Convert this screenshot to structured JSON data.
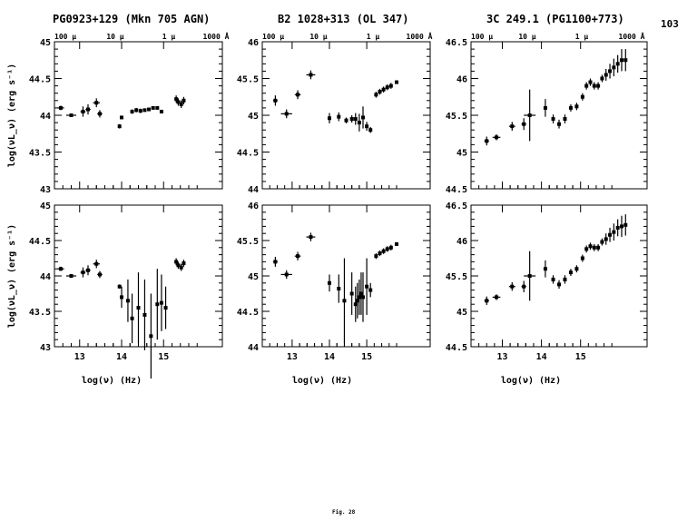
{
  "page_number": "103",
  "figure_label": "Fig. 28",
  "colors": {
    "ink": "#000000",
    "paper": "#ffffff"
  },
  "chart_data": [
    {
      "type": "scatter",
      "title": "PG0923+129 (Mkn 705 AGN)",
      "panel": "top-left",
      "xlim": [
        12.4,
        16.4
      ],
      "ylim": [
        43,
        45
      ],
      "xticks": [
        "13",
        "14",
        "15"
      ],
      "yticks": [
        "43",
        "43.5",
        "44",
        "44.5",
        "45"
      ],
      "top_labels": [
        "100 μ",
        "10 μ",
        "1 μ",
        "1000 Å"
      ],
      "xlabel": "",
      "ylabel": "log(νL_ν) (erg s⁻¹)",
      "points": [
        [
          12.55,
          44.1,
          0.08,
          0.03
        ],
        [
          12.8,
          44.0,
          0.12,
          0.01
        ],
        [
          13.08,
          44.05,
          0.06,
          0.07
        ],
        [
          13.2,
          44.08,
          0.06,
          0.07
        ],
        [
          13.4,
          44.17,
          0.08,
          0.06
        ],
        [
          13.48,
          44.02,
          0.06,
          0.05
        ],
        [
          13.95,
          43.85,
          0.02,
          0.03
        ],
        [
          14.0,
          43.97,
          0.02,
          0.02
        ],
        [
          14.25,
          44.05,
          0.03,
          0.03
        ],
        [
          14.35,
          44.07,
          0.03,
          0.03
        ],
        [
          14.45,
          44.06,
          0.03,
          0.03
        ],
        [
          14.55,
          44.07,
          0.02,
          0.02
        ],
        [
          14.65,
          44.08,
          0.02,
          0.02
        ],
        [
          14.75,
          44.1,
          0.02,
          0.02
        ],
        [
          14.85,
          44.1,
          0.02,
          0.02
        ],
        [
          14.95,
          44.05,
          0.04,
          0.01
        ],
        [
          15.3,
          44.22,
          0.03,
          0.05
        ],
        [
          15.35,
          44.18,
          0.03,
          0.05
        ],
        [
          15.42,
          44.15,
          0.03,
          0.05
        ],
        [
          15.48,
          44.2,
          0.02,
          0.05
        ]
      ]
    },
    {
      "type": "scatter",
      "title": "B2 1028+313 (OL 347)",
      "panel": "top-middle",
      "xlim": [
        12.2,
        16.7
      ],
      "ylim": [
        44,
        46
      ],
      "xticks": [
        "13",
        "14",
        "15"
      ],
      "yticks": [
        "44",
        "44.5",
        "45",
        "45.5",
        "46"
      ],
      "top_labels": [
        "100 μ",
        "10 μ",
        "1 μ",
        "1000 Å"
      ],
      "xlabel": "",
      "ylabel": "",
      "points": [
        [
          12.55,
          45.2,
          0.06,
          0.07
        ],
        [
          12.85,
          45.02,
          0.15,
          0.06
        ],
        [
          13.15,
          45.28,
          0.08,
          0.06
        ],
        [
          13.5,
          45.55,
          0.12,
          0.06
        ],
        [
          14.0,
          44.96,
          0.03,
          0.07
        ],
        [
          14.25,
          44.98,
          0.03,
          0.06
        ],
        [
          14.45,
          44.93,
          0.03,
          0.04
        ],
        [
          14.6,
          44.95,
          0.03,
          0.05
        ],
        [
          14.7,
          44.95,
          0.02,
          0.08
        ],
        [
          14.8,
          44.9,
          0.02,
          0.12
        ],
        [
          14.9,
          44.97,
          0.02,
          0.15
        ],
        [
          15.0,
          44.85,
          0.02,
          0.06
        ],
        [
          15.1,
          44.8,
          0.02,
          0.04
        ],
        [
          15.25,
          45.28,
          0.02,
          0.04
        ],
        [
          15.35,
          45.32,
          0.02,
          0.04
        ],
        [
          15.45,
          45.35,
          0.02,
          0.04
        ],
        [
          15.55,
          45.38,
          0.02,
          0.04
        ],
        [
          15.65,
          45.4,
          0.02,
          0.04
        ],
        [
          15.8,
          45.45,
          0.02,
          0.02
        ]
      ]
    },
    {
      "type": "scatter",
      "title": "3C 249.1 (PG1100+773)",
      "panel": "top-right",
      "xlim": [
        12.2,
        16.7
      ],
      "ylim": [
        44.5,
        46.5
      ],
      "xticks": [
        "13",
        "14",
        "15"
      ],
      "yticks": [
        "44.5",
        "45",
        "45.5",
        "46",
        "46.5"
      ],
      "top_labels": [
        "100 μ",
        "10 μ",
        "1 μ",
        "1000 Å"
      ],
      "xlabel": "",
      "ylabel": "",
      "points": [
        [
          12.6,
          45.15,
          0.06,
          0.06
        ],
        [
          12.85,
          45.2,
          0.1,
          0.04
        ],
        [
          13.25,
          45.35,
          0.08,
          0.06
        ],
        [
          13.55,
          45.38,
          0.06,
          0.08
        ],
        [
          13.7,
          45.5,
          0.15,
          0.35
        ],
        [
          14.1,
          45.6,
          0.03,
          0.12
        ],
        [
          14.3,
          45.45,
          0.03,
          0.06
        ],
        [
          14.45,
          45.38,
          0.03,
          0.06
        ],
        [
          14.6,
          45.45,
          0.03,
          0.06
        ],
        [
          14.75,
          45.6,
          0.03,
          0.05
        ],
        [
          14.9,
          45.62,
          0.03,
          0.05
        ],
        [
          15.05,
          45.75,
          0.02,
          0.05
        ],
        [
          15.15,
          45.9,
          0.02,
          0.05
        ],
        [
          15.25,
          45.95,
          0.02,
          0.05
        ],
        [
          15.35,
          45.9,
          0.02,
          0.05
        ],
        [
          15.45,
          45.9,
          0.02,
          0.05
        ],
        [
          15.55,
          46.0,
          0.02,
          0.05
        ],
        [
          15.65,
          46.05,
          0.02,
          0.08
        ],
        [
          15.75,
          46.1,
          0.02,
          0.1
        ],
        [
          15.85,
          46.15,
          0.02,
          0.12
        ],
        [
          15.95,
          46.2,
          0.02,
          0.12
        ],
        [
          16.05,
          46.25,
          0.02,
          0.15
        ],
        [
          16.15,
          46.25,
          0.02,
          0.15
        ]
      ]
    },
    {
      "type": "scatter",
      "title": "",
      "panel": "bottom-left",
      "xlim": [
        12.4,
        16.4
      ],
      "ylim": [
        43,
        45
      ],
      "xticks": [
        "13",
        "14",
        "15"
      ],
      "yticks": [
        "43",
        "43.5",
        "44",
        "44.5",
        "45"
      ],
      "xlabel": "log(ν) (Hz)",
      "ylabel": "log(νL_ν) (erg s⁻¹)",
      "points": [
        [
          12.55,
          44.1,
          0.08,
          0.03
        ],
        [
          12.8,
          44.0,
          0.12,
          0.01
        ],
        [
          13.08,
          44.05,
          0.06,
          0.07
        ],
        [
          13.2,
          44.08,
          0.06,
          0.07
        ],
        [
          13.4,
          44.17,
          0.08,
          0.06
        ],
        [
          13.48,
          44.02,
          0.06,
          0.05
        ],
        [
          13.95,
          43.85,
          0.02,
          0.03
        ],
        [
          14.0,
          43.7,
          0.02,
          0.15
        ],
        [
          14.15,
          43.65,
          0.02,
          0.3
        ],
        [
          14.25,
          43.4,
          0.02,
          0.35
        ],
        [
          14.4,
          43.55,
          0.02,
          0.5
        ],
        [
          14.55,
          43.45,
          0.02,
          0.5
        ],
        [
          14.7,
          43.15,
          0.02,
          0.6
        ],
        [
          14.85,
          43.6,
          0.02,
          0.5
        ],
        [
          14.95,
          43.62,
          0.02,
          0.4
        ],
        [
          15.05,
          43.55,
          0.02,
          0.3
        ],
        [
          15.3,
          44.2,
          0.03,
          0.05
        ],
        [
          15.35,
          44.15,
          0.03,
          0.05
        ],
        [
          15.42,
          44.12,
          0.03,
          0.05
        ],
        [
          15.48,
          44.18,
          0.02,
          0.05
        ]
      ]
    },
    {
      "type": "scatter",
      "title": "",
      "panel": "bottom-middle",
      "xlim": [
        12.2,
        16.7
      ],
      "ylim": [
        44,
        46
      ],
      "xticks": [
        "13",
        "14",
        "15"
      ],
      "yticks": [
        "44",
        "44.5",
        "45",
        "45.5",
        "46"
      ],
      "xlabel": "log(ν) (Hz)",
      "ylabel": "",
      "points": [
        [
          12.55,
          45.2,
          0.06,
          0.07
        ],
        [
          12.85,
          45.02,
          0.15,
          0.06
        ],
        [
          13.15,
          45.28,
          0.08,
          0.06
        ],
        [
          13.5,
          45.55,
          0.12,
          0.06
        ],
        [
          14.0,
          44.9,
          0.03,
          0.12
        ],
        [
          14.25,
          44.82,
          0.03,
          0.2
        ],
        [
          14.4,
          44.65,
          0.03,
          0.6
        ],
        [
          14.6,
          44.75,
          0.02,
          0.3
        ],
        [
          14.7,
          44.6,
          0.02,
          0.25
        ],
        [
          14.75,
          44.65,
          0.02,
          0.25
        ],
        [
          14.8,
          44.7,
          0.02,
          0.25
        ],
        [
          14.85,
          44.75,
          0.02,
          0.3
        ],
        [
          14.9,
          44.7,
          0.02,
          0.35
        ],
        [
          15.0,
          44.85,
          0.02,
          0.4
        ],
        [
          15.1,
          44.8,
          0.02,
          0.1
        ],
        [
          15.25,
          45.28,
          0.02,
          0.04
        ],
        [
          15.35,
          45.32,
          0.02,
          0.04
        ],
        [
          15.45,
          45.35,
          0.02,
          0.04
        ],
        [
          15.55,
          45.38,
          0.02,
          0.04
        ],
        [
          15.65,
          45.4,
          0.02,
          0.04
        ],
        [
          15.8,
          45.45,
          0.02,
          0.02
        ]
      ]
    },
    {
      "type": "scatter",
      "title": "",
      "panel": "bottom-right",
      "xlim": [
        12.2,
        16.7
      ],
      "ylim": [
        44.5,
        46.5
      ],
      "xticks": [
        "13",
        "14",
        "15"
      ],
      "yticks": [
        "44.5",
        "45",
        "45.5",
        "46",
        "46.5"
      ],
      "xlabel": "log(ν) (Hz)",
      "ylabel": "",
      "points": [
        [
          12.6,
          45.15,
          0.06,
          0.06
        ],
        [
          12.85,
          45.2,
          0.1,
          0.04
        ],
        [
          13.25,
          45.35,
          0.08,
          0.06
        ],
        [
          13.55,
          45.35,
          0.06,
          0.08
        ],
        [
          13.7,
          45.5,
          0.15,
          0.35
        ],
        [
          14.1,
          45.6,
          0.03,
          0.12
        ],
        [
          14.3,
          45.45,
          0.03,
          0.06
        ],
        [
          14.45,
          45.38,
          0.03,
          0.06
        ],
        [
          14.6,
          45.45,
          0.03,
          0.06
        ],
        [
          14.75,
          45.55,
          0.03,
          0.05
        ],
        [
          14.9,
          45.6,
          0.03,
          0.05
        ],
        [
          15.05,
          45.75,
          0.02,
          0.05
        ],
        [
          15.15,
          45.88,
          0.02,
          0.05
        ],
        [
          15.25,
          45.92,
          0.02,
          0.05
        ],
        [
          15.35,
          45.9,
          0.02,
          0.05
        ],
        [
          15.45,
          45.9,
          0.02,
          0.05
        ],
        [
          15.55,
          45.98,
          0.02,
          0.05
        ],
        [
          15.65,
          46.02,
          0.02,
          0.08
        ],
        [
          15.75,
          46.08,
          0.02,
          0.1
        ],
        [
          15.85,
          46.12,
          0.02,
          0.12
        ],
        [
          15.95,
          46.18,
          0.02,
          0.12
        ],
        [
          16.05,
          46.2,
          0.02,
          0.15
        ],
        [
          16.15,
          46.22,
          0.02,
          0.15
        ]
      ]
    }
  ]
}
